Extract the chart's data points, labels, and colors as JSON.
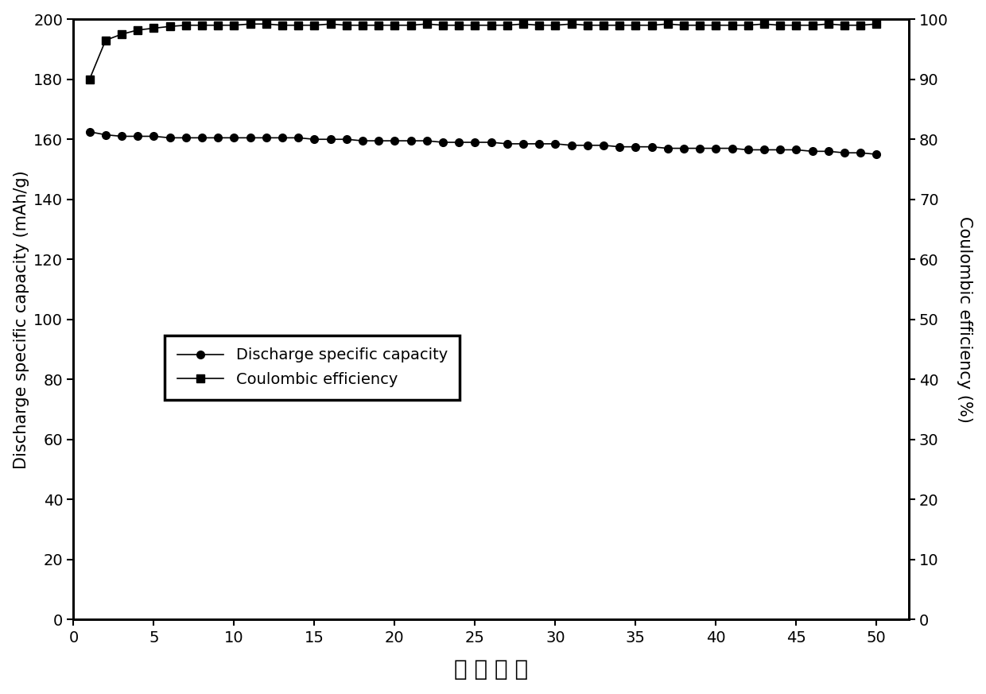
{
  "xlabel": "循 环 次 数",
  "ylabel_left": "Discharge specific capacity (mAh/g)",
  "ylabel_right": "Coulombic efficiency (%)",
  "xlim": [
    0,
    52
  ],
  "ylim_left": [
    0,
    200
  ],
  "ylim_right": [
    0,
    100
  ],
  "xticks": [
    0,
    5,
    10,
    15,
    20,
    25,
    30,
    35,
    40,
    45,
    50
  ],
  "yticks_left": [
    0,
    20,
    40,
    60,
    80,
    100,
    120,
    140,
    160,
    180,
    200
  ],
  "yticks_right": [
    0,
    10,
    20,
    30,
    40,
    50,
    60,
    70,
    80,
    90,
    100
  ],
  "legend_labels": [
    "Discharge specific capacity",
    "Coulombic efficiency"
  ],
  "discharge_x": [
    1,
    2,
    3,
    4,
    5,
    6,
    7,
    8,
    9,
    10,
    11,
    12,
    13,
    14,
    15,
    16,
    17,
    18,
    19,
    20,
    21,
    22,
    23,
    24,
    25,
    26,
    27,
    28,
    29,
    30,
    31,
    32,
    33,
    34,
    35,
    36,
    37,
    38,
    39,
    40,
    41,
    42,
    43,
    44,
    45,
    46,
    47,
    48,
    49,
    50
  ],
  "discharge_y": [
    162.5,
    161.5,
    161.0,
    161.0,
    161.0,
    160.5,
    160.5,
    160.5,
    160.5,
    160.5,
    160.5,
    160.5,
    160.5,
    160.5,
    160.0,
    160.0,
    160.0,
    159.5,
    159.5,
    159.5,
    159.5,
    159.5,
    159.0,
    159.0,
    159.0,
    159.0,
    158.5,
    158.5,
    158.5,
    158.5,
    158.0,
    158.0,
    158.0,
    157.5,
    157.5,
    157.5,
    157.0,
    157.0,
    157.0,
    157.0,
    157.0,
    156.5,
    156.5,
    156.5,
    156.5,
    156.0,
    156.0,
    155.5,
    155.5,
    155.0
  ],
  "coulombic_x": [
    1,
    2,
    3,
    4,
    5,
    6,
    7,
    8,
    9,
    10,
    11,
    12,
    13,
    14,
    15,
    16,
    17,
    18,
    19,
    20,
    21,
    22,
    23,
    24,
    25,
    26,
    27,
    28,
    29,
    30,
    31,
    32,
    33,
    34,
    35,
    36,
    37,
    38,
    39,
    40,
    41,
    42,
    43,
    44,
    45,
    46,
    47,
    48,
    49,
    50
  ],
  "coulombic_y": [
    90.0,
    96.5,
    97.5,
    98.2,
    98.5,
    98.8,
    99.0,
    99.0,
    99.0,
    99.0,
    99.2,
    99.2,
    99.0,
    99.0,
    99.0,
    99.2,
    99.0,
    99.0,
    99.0,
    99.0,
    99.0,
    99.2,
    99.0,
    99.0,
    99.0,
    99.0,
    99.0,
    99.2,
    99.0,
    99.0,
    99.2,
    99.0,
    99.0,
    99.0,
    99.0,
    99.0,
    99.2,
    99.0,
    99.0,
    99.0,
    99.0,
    99.0,
    99.2,
    99.0,
    99.0,
    99.0,
    99.2,
    99.0,
    99.0,
    99.2
  ],
  "line_color": "#000000",
  "background_color": "#ffffff",
  "marker_circle": "o",
  "marker_square": "s",
  "markersize_circle": 7,
  "markersize_square": 7,
  "linewidth": 1.2,
  "label_fontsize": 15,
  "tick_fontsize": 14,
  "legend_fontsize": 14,
  "xlabel_fontsize": 20
}
